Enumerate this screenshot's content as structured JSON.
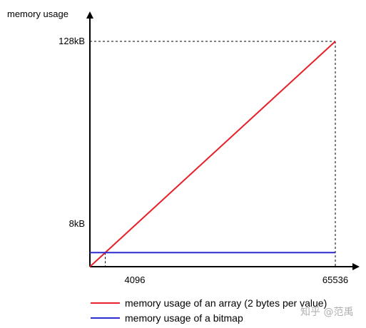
{
  "chart_data": {
    "type": "line",
    "ylabel": "memory usage",
    "xlabel": "",
    "x_ticks": [
      "4096",
      "65536"
    ],
    "y_ticks": [
      "8kB",
      "128kB"
    ],
    "xlim": [
      0,
      65536
    ],
    "ylim_kB": [
      0,
      128
    ],
    "grid": false,
    "legend_position": "bottom",
    "series": [
      {
        "name": "memory usage of an array (2 bytes per value)",
        "color": "#e8202a",
        "x": [
          0,
          65536
        ],
        "y_kB": [
          0,
          128
        ]
      },
      {
        "name": "memory usage of a bitmap",
        "color": "#2b2bd0",
        "x": [
          0,
          65536
        ],
        "y_kB": [
          8,
          8
        ]
      }
    ],
    "annotations": [
      {
        "type": "dashed-guide",
        "x": 4096,
        "y_kB": 8
      },
      {
        "type": "dashed-guide",
        "x": 65536,
        "y_kB": 128
      }
    ]
  },
  "watermark": "知乎 @范禹"
}
